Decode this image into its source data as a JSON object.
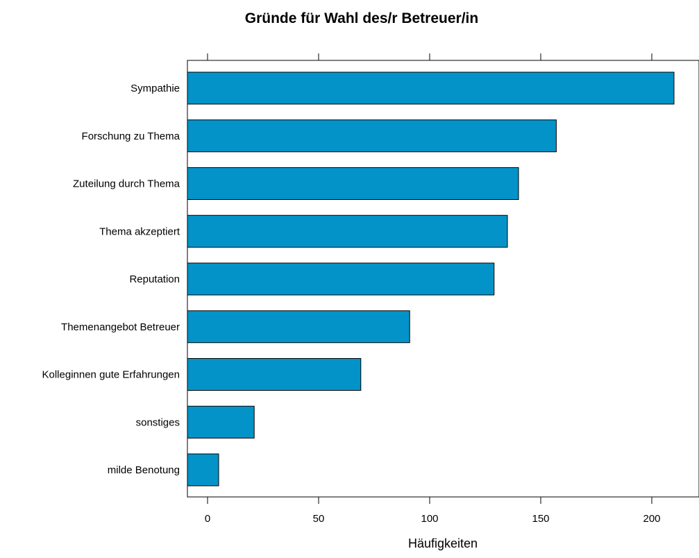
{
  "chart_data": {
    "type": "bar",
    "orientation": "horizontal",
    "title": "Gründe für Wahl des/r Betreuer/in",
    "xlabel": "Häufigkeiten",
    "ylabel": "",
    "categories": [
      "Sympathie",
      "Forschung zu Thema",
      "Zuteilung  durch Thema",
      "Thema akzeptiert",
      "Reputation",
      "Themenangebot Betreuer",
      "Kolleginnen gute Erfahrungen",
      "sonstiges",
      "milde Benotung"
    ],
    "values": [
      210,
      157,
      140,
      135,
      129,
      91,
      69,
      21,
      5
    ],
    "xlim": [
      -9.5,
      221
    ],
    "xticks": [
      0,
      50,
      100,
      150,
      200
    ],
    "tick_labels_bottom": [
      "0",
      "50",
      "100",
      "150",
      "200"
    ],
    "ticks_top": true,
    "grid": false,
    "legend": "none",
    "colors": {
      "bar_fill": "#0493C8",
      "bar_stroke": "#000000"
    }
  }
}
